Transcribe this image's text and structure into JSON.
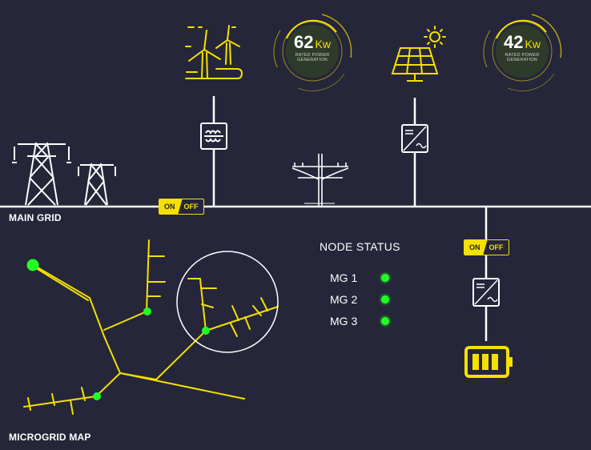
{
  "labels": {
    "main_grid": "MAIN GRID",
    "microgrid_map": "MICROGRID MAP"
  },
  "gauges": [
    {
      "value": "62",
      "unit": "Kw",
      "line1": "RATED POWER",
      "line2": "GENERATION"
    },
    {
      "value": "42",
      "unit": "Kw",
      "line1": "RATED POWER",
      "line2": "GENERATION"
    }
  ],
  "switches": [
    {
      "on": "ON",
      "off": "OFF"
    },
    {
      "on": "ON",
      "off": "OFF"
    }
  ],
  "node_status": {
    "title": "NODE STATUS",
    "nodes": [
      {
        "label": "MG 1",
        "status_color": "#22ff22"
      },
      {
        "label": "MG 2",
        "status_color": "#22ff22"
      },
      {
        "label": "MG 3",
        "status_color": "#22ff22"
      }
    ]
  },
  "colors": {
    "background": "#25263a",
    "accent": "#f5e000",
    "line": "#ffffff",
    "status_ok": "#22ff22"
  },
  "icons": [
    "wind-turbine-icon",
    "solar-panel-icon",
    "sun-icon",
    "transmission-tower-icon",
    "utility-pole-icon",
    "transformer-icon",
    "inverter-icon",
    "battery-icon"
  ]
}
